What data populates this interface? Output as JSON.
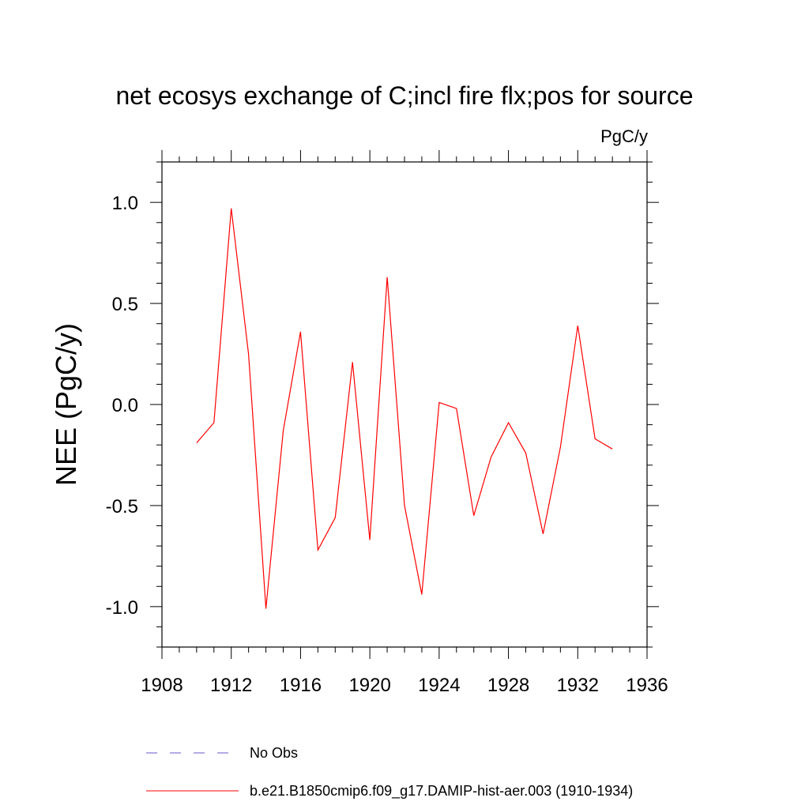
{
  "chart_data": {
    "type": "line",
    "title": "net ecosys exchange of C;incl fire flx;pos for source",
    "units_label": "PgC/y",
    "ylabel": "NEE  (PgC/y)",
    "xlabel": "",
    "xlim": [
      1908,
      1936
    ],
    "ylim": [
      -1.2,
      1.2
    ],
    "x_ticks": [
      1908,
      1912,
      1916,
      1920,
      1924,
      1928,
      1932,
      1936
    ],
    "x_tick_labels": [
      "1908",
      "1912",
      "1916",
      "1920",
      "1924",
      "1928",
      "1932",
      "1936"
    ],
    "y_ticks": [
      1.0,
      0.5,
      0.0,
      -0.5,
      -1.0
    ],
    "y_tick_labels": [
      "1.0",
      "0.5",
      "0.0",
      "-0.5",
      "-1.0"
    ],
    "grid": false,
    "legend_position": "bottom",
    "series": [
      {
        "name": "No Obs",
        "color": "#6a5acd",
        "dash": true,
        "x": [],
        "y": []
      },
      {
        "name": "b.e21.B1850cmip6.f09_g17.DAMIP-hist-aer.003 (1910-1934)",
        "color": "#ff0000",
        "dash": false,
        "x": [
          1910,
          1911,
          1912,
          1913,
          1914,
          1915,
          1916,
          1917,
          1918,
          1919,
          1920,
          1921,
          1922,
          1923,
          1924,
          1925,
          1926,
          1927,
          1928,
          1929,
          1930,
          1931,
          1932,
          1933,
          1934
        ],
        "y": [
          -0.19,
          -0.09,
          0.97,
          0.25,
          -1.01,
          -0.13,
          0.36,
          -0.72,
          -0.56,
          0.21,
          -0.67,
          0.63,
          -0.5,
          -0.94,
          0.01,
          -0.02,
          -0.55,
          -0.26,
          -0.09,
          -0.24,
          -0.64,
          -0.21,
          0.39,
          -0.17,
          -0.22
        ]
      }
    ]
  }
}
